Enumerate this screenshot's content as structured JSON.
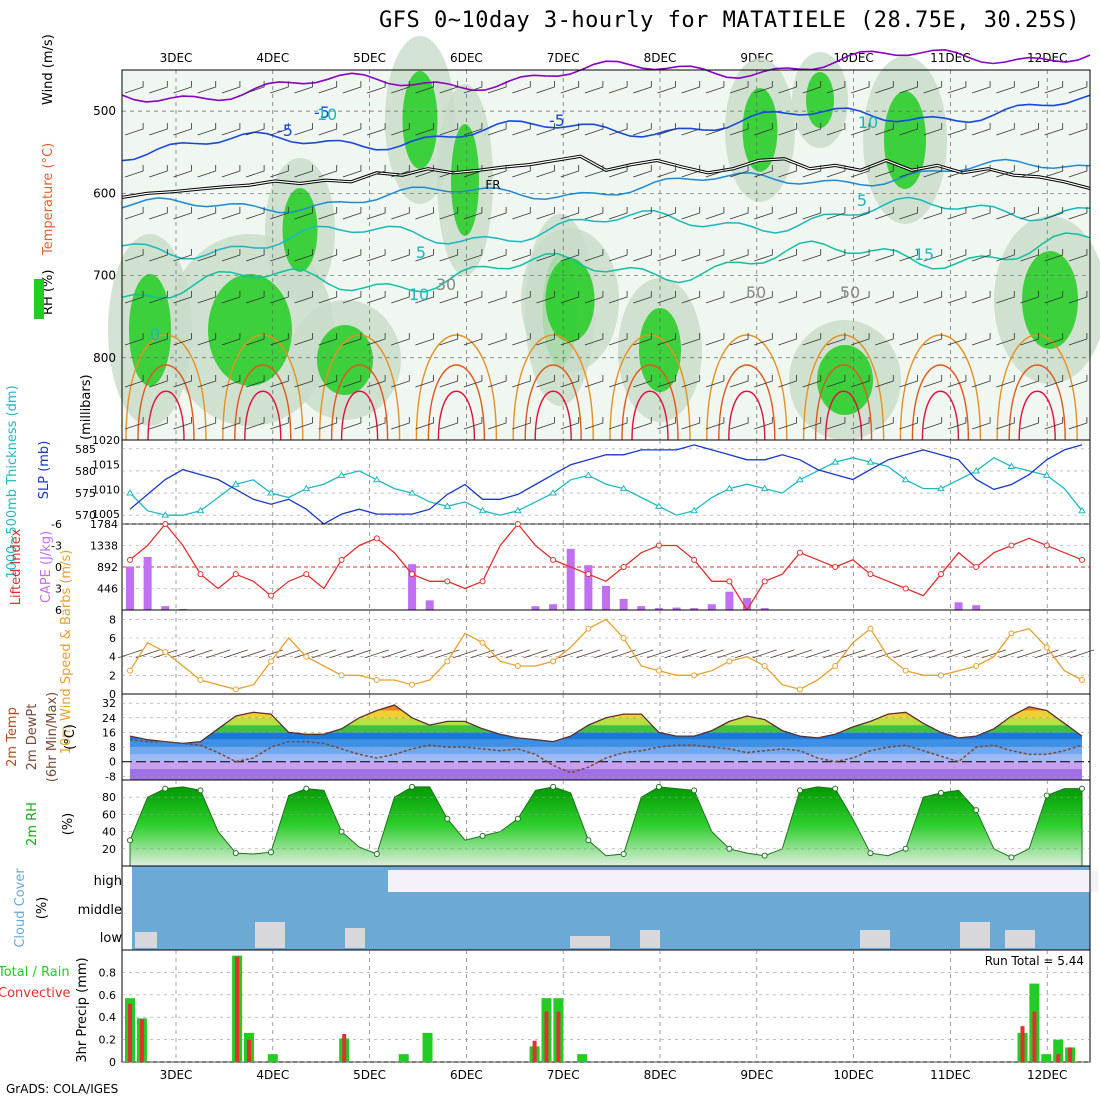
{
  "header": {
    "title": "GFS 0~10day 3-hourly for MATATIELE (28.75E, 30.25S)",
    "credit": "GrADS: COLA/IGES"
  },
  "colors": {
    "rh_green": "#22cc22",
    "rh_light": "#dde9dd",
    "temp_purple": "#8a00c8",
    "temp_blue": "#1848e0",
    "temp_teal": "#18b8c0",
    "temp_orange": "#e89020",
    "temp_red": "#e01040",
    "slp": "#1838c8",
    "thickness": "#20b8c0",
    "lifted_index": "#e03030",
    "cape": "#c070f0",
    "wind10": "#e8a030",
    "dewpt": "#7a4a3a",
    "rh2m": "#10b010",
    "cloud": "#6aaad4",
    "precip_total": "#22cc22",
    "precip_conv": "#e03030"
  },
  "chart_data": {
    "type": "meteogram",
    "date_labels": [
      "3DEC",
      "4DEC",
      "5DEC",
      "6DEC",
      "7DEC",
      "8DEC",
      "9DEC",
      "10DEC",
      "11DEC",
      "12DEC"
    ],
    "panels": {
      "upper_air": {
        "left_labels": [
          "Wind (m/s)",
          "Temperature (°C)",
          "RH (%)"
        ],
        "ylabel": "(millibars)",
        "y_ticks": [
          500,
          600,
          700,
          800
        ],
        "ylim": [
          450,
          900
        ],
        "contour_labels": [
          "-5",
          "-5",
          "-5",
          "10",
          "FR",
          "5",
          "5",
          "10",
          "15",
          "0",
          "30",
          "50",
          "50",
          "10"
        ],
        "freezing_level_mb": [
          605,
          600,
          598,
          595,
          592,
          590,
          585,
          588,
          584,
          586,
          575,
          578,
          570,
          575,
          572,
          568,
          565,
          560,
          555,
          572,
          565,
          560,
          568,
          575,
          570,
          560,
          558,
          570,
          566,
          572,
          560,
          572,
          566,
          575,
          570,
          578,
          580,
          586,
          594
        ]
      },
      "slp_thickness": {
        "ylabel_left": "1000~500mb Thickness (dm)",
        "ylabel_right": "SLP (mb)",
        "left_ticks": [
          570,
          575,
          580,
          585
        ],
        "right_ticks": [
          1005,
          1010,
          1015,
          1020
        ],
        "left_lim": [
          568,
          587
        ],
        "right_lim": [
          1003,
          1020
        ],
        "slp_series": [
          1006,
          1009,
          1012,
          1014,
          1013,
          1012,
          1010,
          1008,
          1007,
          1008,
          1006,
          1003,
          1005,
          1006,
          1005,
          1005,
          1005,
          1006,
          1009,
          1011,
          1008,
          1008,
          1009,
          1011,
          1013,
          1015,
          1016,
          1017,
          1017,
          1018,
          1018,
          1018,
          1019,
          1018,
          1017,
          1016,
          1016,
          1017,
          1016,
          1014,
          1013,
          1012,
          1014,
          1016,
          1017,
          1018,
          1017,
          1016,
          1012,
          1010,
          1011,
          1013,
          1016,
          1018,
          1019
        ],
        "thickness_series": [
          575,
          571,
          570,
          570,
          571,
          574,
          577,
          578,
          575,
          574,
          576,
          577,
          579,
          580,
          578,
          576,
          575,
          573,
          572,
          573,
          571,
          570,
          571,
          573,
          575,
          578,
          579,
          577,
          576,
          574,
          572,
          570,
          571,
          574,
          576,
          577,
          576,
          575,
          578,
          580,
          582,
          583,
          582,
          581,
          578,
          576,
          576,
          578,
          580,
          583,
          581,
          580,
          579,
          576,
          571
        ]
      },
      "lifted_cape": {
        "ylabel_left": "Lifted Index",
        "ylabel_right": "CAPE (J/kg)",
        "left_ticks": [
          6,
          3,
          0,
          -3,
          -6
        ],
        "right_ticks": [
          446,
          892,
          1338,
          1784
        ],
        "li_series": [
          -1,
          -3,
          -6,
          -3,
          1,
          3,
          1,
          2,
          4,
          2,
          1,
          3,
          -1,
          -3,
          -4,
          -2,
          1,
          2,
          2,
          3,
          2,
          -3,
          -6,
          -3,
          -1,
          0,
          1,
          2,
          0,
          -2,
          -3,
          -3,
          -1,
          2,
          2,
          6,
          2,
          1,
          -2,
          -1,
          0,
          -1,
          1,
          2,
          3,
          4,
          1,
          -2,
          0,
          -2,
          -3,
          -4,
          -3,
          -2,
          -1
        ],
        "cape_series": [
          900,
          1100,
          80,
          20,
          0,
          0,
          0,
          0,
          0,
          0,
          0,
          0,
          0,
          0,
          0,
          0,
          950,
          200,
          0,
          0,
          0,
          0,
          0,
          80,
          120,
          1270,
          930,
          500,
          230,
          80,
          40,
          50,
          40,
          120,
          380,
          250,
          40,
          0,
          0,
          0,
          0,
          0,
          0,
          0,
          0,
          0,
          0,
          160,
          100,
          0,
          0,
          0,
          0,
          0,
          0
        ]
      },
      "wind10m": {
        "ylabel": "10m Wind Speed & Barbs (m/s)",
        "y_ticks": [
          0,
          2,
          4,
          6,
          8
        ],
        "ylim": [
          0,
          9
        ],
        "speed_series": [
          2.5,
          5.5,
          4.5,
          3,
          1.5,
          1,
          0.5,
          1,
          3.5,
          6,
          4,
          3,
          2,
          2,
          1.5,
          1.5,
          1,
          1.5,
          3.5,
          6.5,
          5.5,
          3.5,
          3,
          3,
          3.5,
          5,
          7,
          8,
          6,
          3,
          2.5,
          2,
          2,
          2.5,
          3.5,
          4,
          3,
          1,
          0.5,
          1.5,
          3,
          5.5,
          7,
          4,
          2.5,
          2,
          2,
          2.5,
          3,
          4,
          6.5,
          7,
          5,
          2.5,
          1.5
        ]
      },
      "temp2m": {
        "ylabel": "2m Temp 2m DewPt (6hr Min/Max) (°C)",
        "y_ticks": [
          -8,
          0,
          8,
          16,
          24,
          32
        ],
        "ylim": [
          -10,
          37
        ],
        "temp_series": [
          14,
          12,
          11,
          10,
          11,
          18,
          25,
          27,
          26,
          16,
          15,
          15,
          18,
          24,
          28,
          31,
          24,
          20,
          22,
          22,
          18,
          15,
          13,
          12,
          11,
          14,
          20,
          24,
          26,
          26,
          16,
          14,
          14,
          17,
          22,
          25,
          23,
          17,
          14,
          13,
          15,
          19,
          22,
          26,
          27,
          21,
          16,
          13,
          14,
          18,
          25,
          30,
          28,
          21,
          14
        ],
        "dewpt_series": [
          12,
          11,
          11,
          10,
          9,
          5,
          0,
          2,
          8,
          11,
          11,
          10,
          7,
          4,
          2,
          4,
          7,
          9,
          8,
          8,
          7,
          6,
          7,
          4,
          -2,
          -6,
          -3,
          2,
          5,
          6,
          8,
          9,
          9,
          8,
          7,
          5,
          6,
          7,
          6,
          2,
          0,
          2,
          6,
          8,
          9,
          6,
          3,
          0,
          8,
          9,
          6,
          4,
          4,
          6,
          9
        ]
      },
      "rh2m": {
        "ylabel": "2m RH (%)",
        "y_ticks": [
          20,
          40,
          60,
          80
        ],
        "ylim": [
          0,
          100
        ],
        "rh_series": [
          30,
          80,
          90,
          92,
          88,
          40,
          15,
          14,
          16,
          82,
          90,
          88,
          40,
          22,
          14,
          80,
          92,
          92,
          55,
          30,
          35,
          40,
          55,
          88,
          92,
          85,
          30,
          12,
          14,
          80,
          92,
          90,
          88,
          40,
          20,
          15,
          12,
          20,
          88,
          92,
          90,
          55,
          15,
          12,
          20,
          80,
          85,
          88,
          65,
          20,
          10,
          20,
          82,
          90,
          90
        ]
      },
      "cloud": {
        "ylabel": "Cloud Cover (%)",
        "levels": [
          "high",
          "middle",
          "low"
        ]
      },
      "precip": {
        "ylabel": "3hr Precip (mm)",
        "left_labels": [
          "Total / Rain",
          "Convective"
        ],
        "y_ticks": [
          0,
          0.2,
          0.4,
          0.6,
          0.8
        ],
        "ylim": [
          0,
          1.0
        ],
        "run_total_label": "Run Total = 5.44",
        "bars": [
          {
            "t": 0,
            "total": 0.57,
            "conv": 0.52
          },
          {
            "t": 1,
            "total": 0.39,
            "conv": 0.38
          },
          {
            "t": 9,
            "total": 0.95,
            "conv": 0.94
          },
          {
            "t": 10,
            "total": 0.26,
            "conv": 0.2
          },
          {
            "t": 12,
            "total": 0.07,
            "conv": 0.0
          },
          {
            "t": 18,
            "total": 0.21,
            "conv": 0.25
          },
          {
            "t": 23,
            "total": 0.07,
            "conv": 0.0
          },
          {
            "t": 25,
            "total": 0.26,
            "conv": 0.0
          },
          {
            "t": 34,
            "total": 0.14,
            "conv": 0.19
          },
          {
            "t": 35,
            "total": 0.57,
            "conv": 0.45
          },
          {
            "t": 36,
            "total": 0.57,
            "conv": 0.45
          },
          {
            "t": 38,
            "total": 0.07,
            "conv": 0.0
          },
          {
            "t": 75,
            "total": 0.26,
            "conv": 0.32
          },
          {
            "t": 76,
            "total": 0.7,
            "conv": 0.45
          },
          {
            "t": 77,
            "total": 0.07,
            "conv": 0.0
          },
          {
            "t": 78,
            "total": 0.2,
            "conv": 0.07
          },
          {
            "t": 79,
            "total": 0.13,
            "conv": 0.13
          }
        ]
      }
    }
  }
}
